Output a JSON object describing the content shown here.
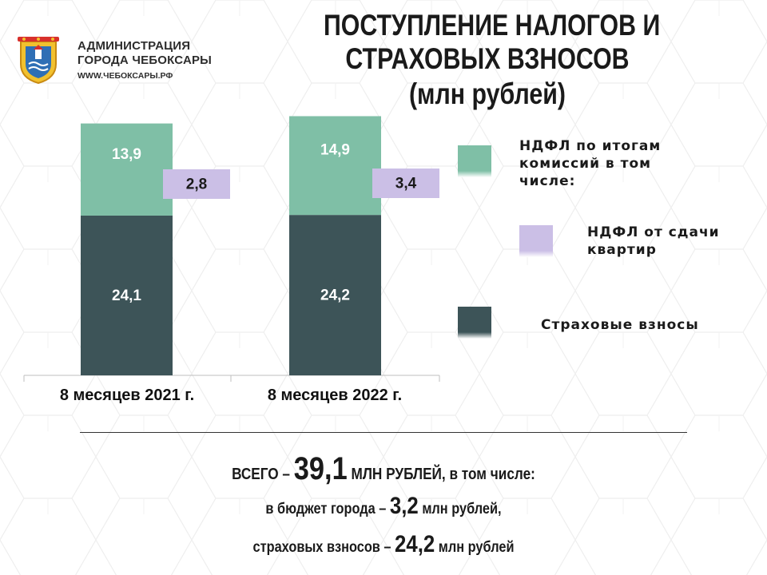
{
  "header": {
    "org_line1": "АДМИНИСТРАЦИЯ",
    "org_line2": "ГОРОДА ЧЕБОКСАРЫ",
    "org_site": "WWW.ЧЕБОКСАРЫ.РФ",
    "title_line1": "ПОСТУПЛЕНИЕ НАЛОГОВ И",
    "title_line2": "СТРАХОВЫХ ВЗНОСОВ",
    "title_line3": "(млн рублей)"
  },
  "colors": {
    "ndfl_commissions": "#7fbfa6",
    "ndfl_apartments": "#cbbfe6",
    "insurance": "#3d5458",
    "axis": "#bfbfbf"
  },
  "chart_data": {
    "type": "bar",
    "categories": [
      "8 месяцев 2021 г.",
      "8 месяцев 2022 г."
    ],
    "series": [
      {
        "name": "Страховые взносы",
        "values": [
          24.1,
          24.2
        ],
        "labels": [
          "24,1",
          "24,2"
        ],
        "color": "#3d5458",
        "stack": "main"
      },
      {
        "name": "НДФЛ по итогам комиссий в том числе:",
        "values": [
          13.9,
          14.9
        ],
        "labels": [
          "13,9",
          "14,9"
        ],
        "color": "#7fbfa6",
        "stack": "main"
      },
      {
        "name": "НДФЛ от сдачи квартир",
        "values": [
          2.8,
          3.4
        ],
        "labels": [
          "2,8",
          "3,4"
        ],
        "color": "#cbbfe6",
        "stack": "side"
      }
    ],
    "legend_position": "right",
    "grid": false,
    "ylim": [
      0,
      40
    ]
  },
  "legend": {
    "item1_line1": "НДФЛ по итогам",
    "item1_line2": "комиссий в том",
    "item1_line3": "числе:",
    "item2_line1": "НДФЛ от сдачи",
    "item2_line2": "квартир",
    "item3": "Страховые взносы"
  },
  "summary": {
    "total_prefix": "ВСЕГО – ",
    "total_value": "39,1",
    "total_suffix": " МЛН РУБЛЕЙ, в том числе:",
    "city_prefix": "в бюджет города – ",
    "city_value": "3,2",
    "city_suffix": " млн рублей,",
    "ins_prefix": "страховых взносов – ",
    "ins_value": "24,2",
    "ins_suffix": " млн рублей"
  }
}
